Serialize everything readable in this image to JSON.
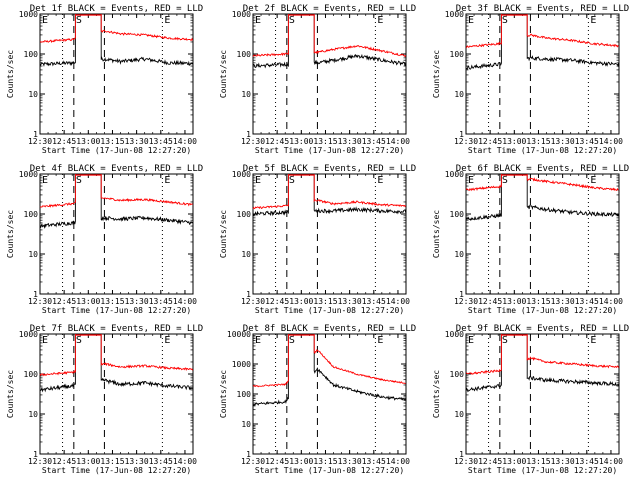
{
  "figure": {
    "ylabel": "Counts/sec",
    "xlabel": "Start Time (17-Jun-08 12:27:20)",
    "x_ticks": [
      "12:30",
      "12:45",
      "13:00",
      "13:15",
      "13:30",
      "13:45",
      "14:00"
    ],
    "marker_labels": [
      "E",
      "S",
      "E"
    ],
    "colors": {
      "events": "#000000",
      "lld": "#ff0000"
    }
  },
  "chart_data": [
    {
      "type": "line",
      "title": "Det 1f BLACK = Events, RED = LLD",
      "x_range": [
        "12:30",
        "14:05"
      ],
      "y_scale": "log",
      "ylim": [
        1,
        1000
      ],
      "y_ticks": [
        "1",
        "10",
        "100",
        "1000"
      ],
      "markers": {
        "dotted": [
          "12:44",
          "13:46"
        ],
        "dashed": [
          "12:51",
          "13:10"
        ]
      },
      "gap": [
        "12:52",
        "13:08"
      ],
      "series": [
        {
          "name": "Events",
          "color": "#000000",
          "x": [
            "12:30",
            "12:50",
            "13:10",
            "13:20",
            "13:35",
            "13:50",
            "14:05"
          ],
          "values": [
            55,
            60,
            75,
            65,
            75,
            60,
            58
          ]
        },
        {
          "name": "LLD",
          "color": "#ff0000",
          "x": [
            "12:30",
            "12:50",
            "13:10",
            "13:20",
            "13:35",
            "13:50",
            "14:05"
          ],
          "values": [
            200,
            230,
            380,
            320,
            300,
            250,
            230
          ]
        }
      ]
    },
    {
      "type": "line",
      "title": "Det 2f BLACK = Events, RED = LLD",
      "x_range": [
        "12:30",
        "14:05"
      ],
      "y_scale": "log",
      "ylim": [
        1,
        1000
      ],
      "y_ticks": [
        "1",
        "10",
        "100",
        "1000"
      ],
      "markers": {
        "dotted": [
          "12:44",
          "13:46"
        ],
        "dashed": [
          "12:51",
          "13:10"
        ]
      },
      "gap": [
        "12:52",
        "13:08"
      ],
      "series": [
        {
          "name": "Events",
          "color": "#000000",
          "x": [
            "12:30",
            "12:50",
            "13:10",
            "13:20",
            "13:35",
            "13:50",
            "14:05"
          ],
          "values": [
            50,
            55,
            60,
            70,
            90,
            70,
            55
          ]
        },
        {
          "name": "LLD",
          "color": "#ff0000",
          "x": [
            "12:30",
            "12:50",
            "13:10",
            "13:20",
            "13:35",
            "13:50",
            "14:05"
          ],
          "values": [
            90,
            100,
            110,
            130,
            160,
            120,
            90
          ]
        }
      ]
    },
    {
      "type": "line",
      "title": "Det 3f BLACK = Events, RED = LLD",
      "x_range": [
        "12:30",
        "14:05"
      ],
      "y_scale": "log",
      "ylim": [
        1,
        1000
      ],
      "y_ticks": [
        "1",
        "10",
        "100",
        "1000"
      ],
      "markers": {
        "dotted": [
          "12:44",
          "13:46"
        ],
        "dashed": [
          "12:51",
          "13:10"
        ]
      },
      "gap": [
        "12:52",
        "13:08"
      ],
      "series": [
        {
          "name": "Events",
          "color": "#000000",
          "x": [
            "12:30",
            "12:50",
            "13:10",
            "13:20",
            "13:35",
            "13:50",
            "14:05"
          ],
          "values": [
            45,
            55,
            80,
            75,
            70,
            60,
            55
          ]
        },
        {
          "name": "LLD",
          "color": "#ff0000",
          "x": [
            "12:30",
            "12:50",
            "13:10",
            "13:20",
            "13:35",
            "13:50",
            "14:05"
          ],
          "values": [
            150,
            180,
            300,
            250,
            220,
            180,
            160
          ]
        }
      ]
    },
    {
      "type": "line",
      "title": "Det 4f BLACK = Events, RED = LLD",
      "x_range": [
        "12:30",
        "14:05"
      ],
      "y_scale": "log",
      "ylim": [
        1,
        1000
      ],
      "y_ticks": [
        "1",
        "10",
        "100",
        "1000"
      ],
      "markers": {
        "dotted": [
          "12:44",
          "13:46"
        ],
        "dashed": [
          "12:51",
          "13:10"
        ]
      },
      "gap": [
        "12:52",
        "13:08"
      ],
      "series": [
        {
          "name": "Events",
          "color": "#000000",
          "x": [
            "12:30",
            "12:50",
            "13:10",
            "13:20",
            "13:35",
            "13:50",
            "14:05"
          ],
          "values": [
            50,
            60,
            80,
            75,
            80,
            70,
            60
          ]
        },
        {
          "name": "LLD",
          "color": "#ff0000",
          "x": [
            "12:30",
            "12:50",
            "13:10",
            "13:20",
            "13:35",
            "13:50",
            "14:05"
          ],
          "values": [
            150,
            180,
            250,
            220,
            230,
            200,
            170
          ]
        }
      ]
    },
    {
      "type": "line",
      "title": "Det 5f BLACK = Events, RED = LLD",
      "x_range": [
        "12:30",
        "14:05"
      ],
      "y_scale": "log",
      "ylim": [
        1,
        1000
      ],
      "y_ticks": [
        "1",
        "10",
        "100",
        "1000"
      ],
      "markers": {
        "dotted": [
          "12:44",
          "13:46"
        ],
        "dashed": [
          "12:51",
          "13:10"
        ]
      },
      "gap": [
        "12:52",
        "13:08"
      ],
      "series": [
        {
          "name": "Events",
          "color": "#000000",
          "x": [
            "12:30",
            "12:50",
            "13:10",
            "13:20",
            "13:35",
            "13:50",
            "14:05"
          ],
          "values": [
            100,
            110,
            120,
            120,
            130,
            120,
            115
          ]
        },
        {
          "name": "LLD",
          "color": "#ff0000",
          "x": [
            "12:30",
            "12:50",
            "13:10",
            "13:20",
            "13:35",
            "13:50",
            "14:05"
          ],
          "values": [
            140,
            160,
            220,
            180,
            200,
            170,
            160
          ]
        }
      ]
    },
    {
      "type": "line",
      "title": "Det 6f BLACK = Events, RED = LLD",
      "x_range": [
        "12:30",
        "14:05"
      ],
      "y_scale": "log",
      "ylim": [
        1,
        1000
      ],
      "y_ticks": [
        "1",
        "10",
        "100",
        "1000"
      ],
      "markers": {
        "dotted": [
          "12:44",
          "13:46"
        ],
        "dashed": [
          "12:51",
          "13:10"
        ]
      },
      "gap": [
        "12:52",
        "13:08"
      ],
      "series": [
        {
          "name": "Events",
          "color": "#000000",
          "x": [
            "12:30",
            "12:50",
            "13:10",
            "13:20",
            "13:35",
            "13:50",
            "14:05"
          ],
          "values": [
            75,
            90,
            150,
            130,
            110,
            100,
            95
          ]
        },
        {
          "name": "LLD",
          "color": "#ff0000",
          "x": [
            "12:30",
            "12:50",
            "13:10",
            "13:20",
            "13:35",
            "13:50",
            "14:05"
          ],
          "values": [
            400,
            480,
            750,
            650,
            550,
            450,
            400
          ]
        }
      ]
    },
    {
      "type": "line",
      "title": "Det 7f BLACK = Events, RED = LLD",
      "x_range": [
        "12:30",
        "14:05"
      ],
      "y_scale": "log",
      "ylim": [
        1,
        1000
      ],
      "y_ticks": [
        "1",
        "10",
        "100",
        "1000"
      ],
      "markers": {
        "dotted": [
          "12:44",
          "13:46"
        ],
        "dashed": [
          "12:51",
          "13:10"
        ]
      },
      "gap": [
        "12:52",
        "13:08"
      ],
      "series": [
        {
          "name": "Events",
          "color": "#000000",
          "x": [
            "12:30",
            "12:50",
            "13:10",
            "13:20",
            "13:35",
            "13:50",
            "14:05"
          ],
          "values": [
            40,
            50,
            70,
            55,
            60,
            50,
            45
          ]
        },
        {
          "name": "LLD",
          "color": "#ff0000",
          "x": [
            "12:30",
            "12:50",
            "13:10",
            "13:20",
            "13:35",
            "13:50",
            "14:05"
          ],
          "values": [
            95,
            110,
            180,
            150,
            160,
            140,
            130
          ]
        }
      ]
    },
    {
      "type": "line",
      "title": "Det 8f BLACK = Events, RED = LLD",
      "x_range": [
        "12:30",
        "14:05"
      ],
      "y_scale": "log",
      "ylim": [
        1,
        10000
      ],
      "y_ticks": [
        "1",
        "10",
        "100",
        "1000",
        "10000"
      ],
      "markers": {
        "dotted": [
          "12:44",
          "13:46"
        ],
        "dashed": [
          "12:51",
          "13:10"
        ]
      },
      "gap": [
        "12:52",
        "13:08"
      ],
      "series": [
        {
          "name": "Events",
          "color": "#000000",
          "x": [
            "12:30",
            "12:50",
            "13:10",
            "13:20",
            "13:35",
            "13:50",
            "14:05"
          ],
          "values": [
            45,
            55,
            700,
            200,
            120,
            80,
            65
          ]
        },
        {
          "name": "LLD",
          "color": "#ff0000",
          "x": [
            "12:30",
            "12:50",
            "13:10",
            "13:20",
            "13:35",
            "13:50",
            "14:05"
          ],
          "values": [
            180,
            210,
            3000,
            800,
            450,
            300,
            230
          ]
        }
      ]
    },
    {
      "type": "line",
      "title": "Det 9f BLACK = Events, RED = LLD",
      "x_range": [
        "12:30",
        "14:05"
      ],
      "y_scale": "log",
      "ylim": [
        1,
        1000
      ],
      "y_ticks": [
        "1",
        "10",
        "100",
        "1000"
      ],
      "markers": {
        "dotted": [
          "12:44",
          "13:46"
        ],
        "dashed": [
          "12:51",
          "13:10"
        ]
      },
      "gap": [
        "12:52",
        "13:08"
      ],
      "series": [
        {
          "name": "Events",
          "color": "#000000",
          "x": [
            "12:30",
            "12:50",
            "13:10",
            "13:20",
            "13:35",
            "13:50",
            "14:05"
          ],
          "values": [
            40,
            50,
            80,
            70,
            65,
            60,
            55
          ]
        },
        {
          "name": "LLD",
          "color": "#ff0000",
          "x": [
            "12:30",
            "12:50",
            "13:10",
            "13:20",
            "13:35",
            "13:50",
            "14:05"
          ],
          "values": [
            100,
            120,
            250,
            200,
            180,
            160,
            150
          ]
        }
      ]
    }
  ]
}
